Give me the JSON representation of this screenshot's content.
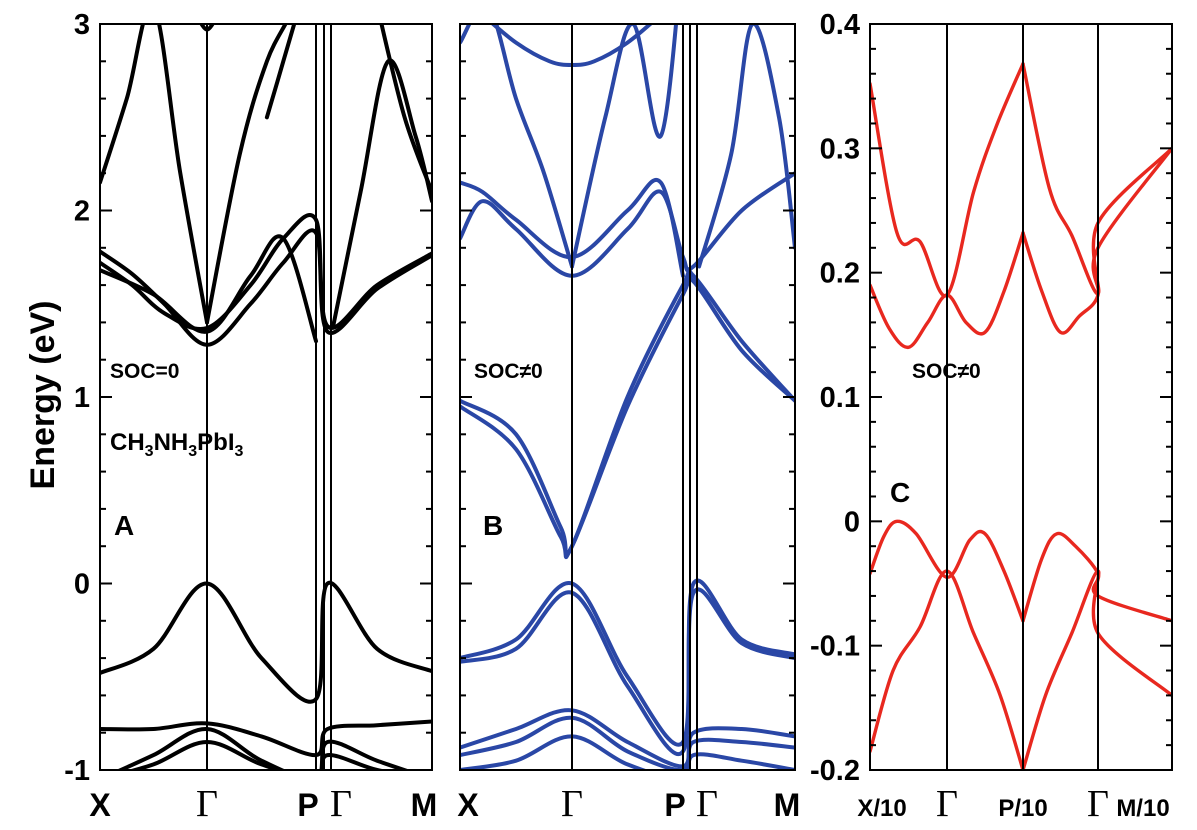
{
  "figure": {
    "ylabel": "Energy (eV)"
  },
  "chart_data": [
    {
      "type": "line",
      "panel_label": "A",
      "annotation": "SOC=0",
      "formula": {
        "parts": [
          "CH",
          "3",
          "NH",
          "3",
          "PbI",
          "3"
        ]
      },
      "ylabel": "Energy (eV)",
      "ylim": [
        -1,
        3
      ],
      "yticks": [
        "-1",
        "0",
        "1",
        "2",
        "3"
      ],
      "xlim": [
        0,
        4
      ],
      "xticks": [
        {
          "x": 0,
          "label": "X"
        },
        {
          "x": 1,
          "label": "Γ"
        },
        {
          "x": 2,
          "label": "P"
        },
        {
          "x": 2.08,
          "label": "Γ"
        },
        {
          "x": 3,
          "label": "M"
        }
      ],
      "vlines": [
        1,
        2.0,
        2.04,
        2.08
      ],
      "color": "#000000",
      "series": [
        {
          "x": [
            0,
            0.5,
            1,
            1.5,
            2,
            2.06,
            2.5,
            3
          ],
          "y": [
            -0.48,
            -0.35,
            0.0,
            -0.4,
            -0.62,
            0.0,
            -0.35,
            -0.47
          ]
        },
        {
          "x": [
            0,
            0.5,
            1,
            1.5,
            2,
            2.06,
            2.5,
            3
          ],
          "y": [
            -0.78,
            -0.78,
            -0.75,
            -0.82,
            -0.92,
            -0.78,
            -0.76,
            -0.74
          ]
        },
        {
          "x": [
            0,
            0.5,
            1,
            1.5,
            2,
            2.06,
            2.5,
            3
          ],
          "y": [
            -1.05,
            -0.92,
            -0.78,
            -0.95,
            -1.05,
            -0.85,
            -0.95,
            -1.05
          ]
        },
        {
          "x": [
            0,
            0.5,
            1,
            1.5,
            2,
            2.06,
            2.5,
            3
          ],
          "y": [
            -1.05,
            -0.97,
            -0.85,
            -0.97,
            -1.05,
            -0.92,
            -1.0,
            -1.05
          ]
        },
        {
          "x": [
            0,
            0.3,
            0.6,
            1,
            1.4,
            1.7,
            2.0,
            2.06,
            2.5,
            3
          ],
          "y": [
            1.72,
            1.6,
            1.45,
            1.37,
            1.6,
            1.85,
            1.95,
            1.38,
            1.6,
            1.77
          ]
        },
        {
          "x": [
            0,
            0.3,
            0.6,
            1,
            1.4,
            1.7,
            2.0,
            2.06,
            2.5,
            3
          ],
          "y": [
            1.78,
            1.66,
            1.5,
            1.28,
            1.5,
            1.72,
            1.88,
            1.35,
            1.58,
            1.76
          ]
        },
        {
          "x": [
            0,
            0.5,
            1,
            1.4,
            1.7,
            2.0
          ],
          "y": [
            1.68,
            1.55,
            1.35,
            1.65,
            1.85,
            1.3
          ]
        },
        {
          "x": [
            0,
            0.25,
            0.5,
            0.75,
            1
          ],
          "y": [
            2.15,
            2.6,
            3.1,
            2.2,
            1.4
          ]
        },
        {
          "x": [
            1,
            1.3,
            1.55,
            1.8,
            2.0
          ],
          "y": [
            1.4,
            2.3,
            2.8,
            3.1,
            3.5
          ]
        },
        {
          "x": [
            1.55,
            1.7,
            1.85,
            2.0
          ],
          "y": [
            2.5,
            2.8,
            3.1,
            3.4
          ]
        },
        {
          "x": [
            2.1,
            2.35,
            2.6,
            2.85,
            3
          ],
          "y": [
            1.38,
            2.1,
            2.8,
            2.4,
            2.05
          ]
        },
        {
          "x": [
            2.5,
            2.75,
            3
          ],
          "y": [
            3.1,
            2.5,
            2.1
          ]
        },
        {
          "x": [
            0.9,
            1.0,
            1.1
          ],
          "y": [
            3.05,
            2.97,
            3.05
          ]
        }
      ]
    },
    {
      "type": "line",
      "panel_label": "B",
      "annotation": "SOC≠0",
      "ylim": [
        -1,
        3
      ],
      "xlim": [
        0,
        4
      ],
      "xticks": [
        {
          "x": 0,
          "label": "X"
        },
        {
          "x": 1,
          "label": "Γ"
        },
        {
          "x": 2,
          "label": "P"
        },
        {
          "x": 2.08,
          "label": "Γ"
        },
        {
          "x": 3,
          "label": "M"
        }
      ],
      "vlines": [
        1,
        2.0,
        2.04,
        2.08
      ],
      "color": "#2a47a6",
      "series": [
        {
          "x": [
            0,
            0.5,
            0.9,
            1,
            1.5,
            2,
            2.06,
            2.5,
            3
          ],
          "y": [
            0.98,
            0.8,
            0.3,
            0.2,
            1.0,
            1.6,
            1.65,
            1.3,
            0.98
          ]
        },
        {
          "x": [
            0,
            0.5,
            0.9,
            1,
            1.5,
            2,
            2.06,
            2.5,
            3
          ],
          "y": [
            0.95,
            0.72,
            0.25,
            0.2,
            0.95,
            1.55,
            1.62,
            1.25,
            0.98
          ]
        },
        {
          "x": [
            0,
            0.5,
            1,
            1.5,
            2,
            2.06,
            2.5,
            3
          ],
          "y": [
            -0.4,
            -0.3,
            0.0,
            -0.5,
            -0.85,
            0.0,
            -0.3,
            -0.38
          ]
        },
        {
          "x": [
            0,
            0.5,
            1,
            1.5,
            2,
            2.06,
            2.5,
            3
          ],
          "y": [
            -0.42,
            -0.35,
            -0.05,
            -0.55,
            -0.9,
            -0.05,
            -0.32,
            -0.4
          ]
        },
        {
          "x": [
            0,
            0.5,
            1,
            1.5,
            2,
            2.06,
            2.5,
            3
          ],
          "y": [
            -0.88,
            -0.78,
            -0.68,
            -0.85,
            -0.98,
            -0.8,
            -0.78,
            -0.82
          ]
        },
        {
          "x": [
            0,
            0.5,
            1,
            1.5,
            2,
            2.06,
            2.5,
            3
          ],
          "y": [
            -0.92,
            -0.85,
            -0.72,
            -0.9,
            -1.0,
            -0.85,
            -0.85,
            -0.88
          ]
        },
        {
          "x": [
            0,
            0.5,
            1,
            1.5,
            2,
            2.06,
            2.5,
            3
          ],
          "y": [
            -1.0,
            -0.95,
            -0.82,
            -0.97,
            -1.05,
            -0.92,
            -0.95,
            -1.0
          ]
        },
        {
          "x": [
            0,
            0.2,
            0.5,
            1,
            1.5,
            1.8,
            2.0,
            2.06,
            2.5,
            3
          ],
          "y": [
            1.85,
            2.05,
            1.9,
            1.65,
            1.9,
            2.1,
            1.75,
            1.7,
            2.0,
            2.2
          ]
        },
        {
          "x": [
            0,
            0.2,
            0.5,
            1,
            1.5,
            1.8,
            2.0
          ],
          "y": [
            2.15,
            2.1,
            1.95,
            1.75,
            2.0,
            2.15,
            1.65
          ]
        },
        {
          "x": [
            0,
            0.25,
            0.5,
            0.75,
            1
          ],
          "y": [
            2.9,
            3.1,
            2.6,
            2.2,
            1.7
          ]
        },
        {
          "x": [
            0.2,
            0.5,
            0.8,
            1,
            1.2,
            1.5,
            1.8
          ],
          "y": [
            3.05,
            2.9,
            2.8,
            2.78,
            2.8,
            2.9,
            3.05
          ]
        },
        {
          "x": [
            1,
            1.3,
            1.55,
            1.8,
            2.0
          ],
          "y": [
            1.7,
            2.5,
            3.0,
            2.4,
            3.4
          ]
        },
        {
          "x": [
            2.1,
            2.4,
            2.6,
            2.85,
            3
          ],
          "y": [
            1.7,
            2.3,
            3.0,
            2.5,
            1.8
          ]
        }
      ]
    },
    {
      "type": "line",
      "panel_label": "C",
      "annotation": "SOC≠0",
      "ylim": [
        -0.2,
        0.4
      ],
      "yticks": [
        "-0.2",
        "-0.1",
        "0",
        "0.1",
        "0.2",
        "0.3",
        "0.4"
      ],
      "xlim": [
        0,
        4
      ],
      "xticks": [
        {
          "x": 0,
          "label": "X/10"
        },
        {
          "x": 1,
          "label": "Γ"
        },
        {
          "x": 2,
          "label": "P/10"
        },
        {
          "x": 3,
          "label": "Γ"
        },
        {
          "x": 3.5,
          "label": "M/10"
        }
      ],
      "vlines": [
        1,
        2,
        3
      ],
      "color": "#e8281f",
      "series": [
        {
          "x": [
            0,
            0.35,
            0.65,
            1,
            1.35,
            1.65,
            2
          ],
          "y": [
            0.352,
            0.232,
            0.225,
            0.182,
            0.265,
            0.318,
            0.368
          ]
        },
        {
          "x": [
            2,
            2.35,
            2.65,
            3,
            3.5,
            4
          ],
          "y": [
            0.368,
            0.268,
            0.23,
            0.183,
            0.24,
            0.3
          ]
        },
        {
          "x": [
            0,
            0.25,
            0.5,
            0.75,
            1,
            1.25,
            1.5,
            1.75,
            2
          ],
          "y": [
            0.19,
            0.155,
            0.14,
            0.16,
            0.182,
            0.16,
            0.152,
            0.185,
            0.232
          ]
        },
        {
          "x": [
            2,
            2.25,
            2.5,
            2.75,
            3,
            3.5,
            4
          ],
          "y": [
            0.232,
            0.185,
            0.152,
            0.165,
            0.182,
            0.22,
            0.3
          ]
        },
        {
          "x": [
            0,
            0.3,
            0.65,
            1,
            1.35,
            1.7,
            2
          ],
          "y": [
            -0.185,
            -0.12,
            -0.085,
            -0.04,
            -0.09,
            -0.14,
            -0.2
          ]
        },
        {
          "x": [
            2,
            2.3,
            2.65,
            3,
            3.5,
            4
          ],
          "y": [
            -0.2,
            -0.14,
            -0.09,
            -0.04,
            -0.09,
            -0.14
          ]
        },
        {
          "x": [
            0,
            0.18,
            0.35,
            0.6,
            1,
            1.3,
            1.5,
            1.75,
            2
          ],
          "y": [
            -0.042,
            -0.012,
            0.0,
            -0.01,
            -0.045,
            -0.015,
            -0.01,
            -0.04,
            -0.08
          ]
        },
        {
          "x": [
            2,
            2.25,
            2.45,
            2.7,
            3,
            3.5,
            4
          ],
          "y": [
            -0.08,
            -0.03,
            -0.01,
            -0.02,
            -0.042,
            -0.06,
            -0.08
          ]
        }
      ]
    }
  ]
}
